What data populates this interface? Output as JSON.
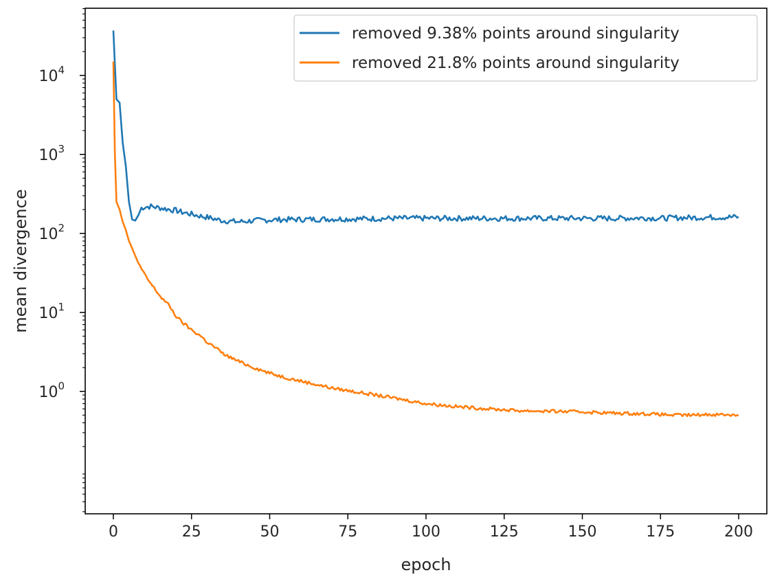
{
  "chart_data": {
    "type": "line",
    "xlabel": "epoch",
    "ylabel": "mean divergence",
    "xlim": [
      -9,
      209
    ],
    "ylim_log10": [
      -1.55,
      4.85
    ],
    "y_scale": "log",
    "x_ticks": [
      {
        "value": 0,
        "label": "0"
      },
      {
        "value": 25,
        "label": "25"
      },
      {
        "value": 50,
        "label": "50"
      },
      {
        "value": 75,
        "label": "75"
      },
      {
        "value": 100,
        "label": "100"
      },
      {
        "value": 125,
        "label": "125"
      },
      {
        "value": 150,
        "label": "150"
      },
      {
        "value": 175,
        "label": "175"
      },
      {
        "value": 200,
        "label": "200"
      }
    ],
    "y_ticks": [
      {
        "exp": 4,
        "base": "10",
        "sup": "4"
      },
      {
        "exp": 3,
        "base": "10",
        "sup": "3"
      },
      {
        "exp": 2,
        "base": "10",
        "sup": "2"
      },
      {
        "exp": 1,
        "base": "10",
        "sup": "1"
      },
      {
        "exp": 0,
        "base": "10",
        "sup": "0"
      }
    ],
    "grid": false,
    "legend_position": "top-right",
    "series": [
      {
        "name": "removed 9.38% points around singularity",
        "color": "#1f77b4",
        "noise": 0.035,
        "x": [
          0,
          1,
          2,
          3,
          4,
          5,
          6,
          7,
          8,
          9,
          10,
          12,
          15,
          18,
          20,
          22,
          25,
          28,
          30,
          33,
          35,
          38,
          40,
          45,
          50,
          55,
          60,
          70,
          80,
          90,
          100,
          110,
          120,
          130,
          140,
          150,
          160,
          170,
          175,
          180,
          185,
          190,
          195,
          200
        ],
        "y": [
          37000,
          5000,
          4500,
          1400,
          700,
          250,
          150,
          145,
          170,
          210,
          215,
          220,
          210,
          200,
          195,
          185,
          175,
          165,
          160,
          150,
          145,
          142,
          140,
          145,
          148,
          150,
          150,
          152,
          153,
          155,
          155,
          155,
          155,
          155,
          155,
          155,
          155,
          157,
          155,
          158,
          158,
          160,
          160,
          162
        ]
      },
      {
        "name": "removed 21.8% points around singularity",
        "color": "#ff7f0e",
        "noise": 0.02,
        "x": [
          0,
          0.5,
          1,
          2,
          3,
          4,
          5,
          6,
          8,
          10,
          12,
          15,
          18,
          20,
          22,
          25,
          28,
          30,
          33,
          35,
          40,
          45,
          50,
          55,
          60,
          70,
          80,
          90,
          100,
          110,
          120,
          130,
          140,
          150,
          160,
          170,
          175,
          180,
          185,
          190,
          195,
          200
        ],
        "y": [
          15000,
          1000,
          250,
          200,
          140,
          110,
          80,
          65,
          42,
          30,
          23,
          16,
          12,
          9,
          7.5,
          6,
          5,
          4.2,
          3.5,
          3,
          2.4,
          2,
          1.7,
          1.5,
          1.35,
          1.1,
          0.95,
          0.82,
          0.7,
          0.64,
          0.6,
          0.57,
          0.56,
          0.55,
          0.53,
          0.52,
          0.51,
          0.5,
          0.5,
          0.51,
          0.51,
          0.5
        ]
      }
    ]
  }
}
